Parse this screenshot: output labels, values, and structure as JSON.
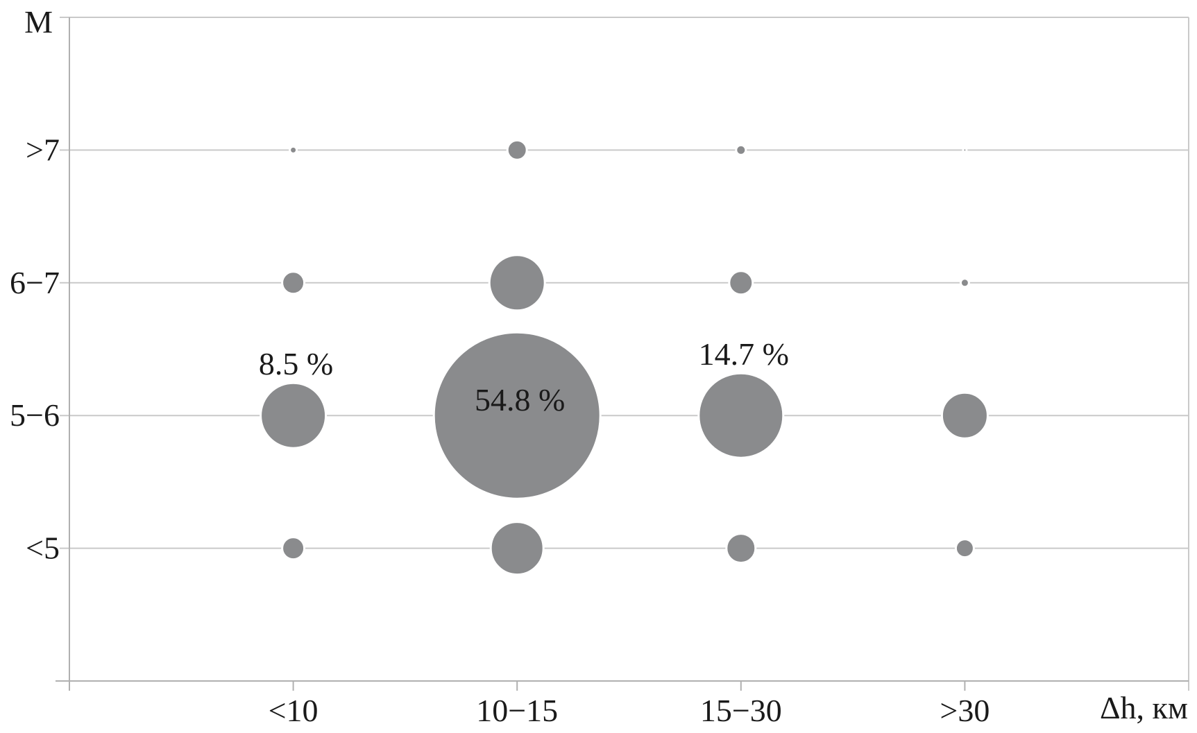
{
  "chart_data": {
    "type": "scatter",
    "subtype": "bubble",
    "title": "",
    "xlabel": "Δh, км",
    "ylabel": "M",
    "x_categories": [
      "<10",
      "10−15",
      "15−30",
      ">30"
    ],
    "y_categories_top_to_bottom": [
      ">7",
      "6−7",
      "5−6",
      "<5"
    ],
    "grid": "horizontal-only",
    "legend": "none",
    "size_encoding": "bubble area proportional to percent of events",
    "points": [
      {
        "x": "<10",
        "y": ">7",
        "radius_px": 5,
        "percent_est": 0.1
      },
      {
        "x": "10−15",
        "y": ">7",
        "radius_px": 14,
        "percent_est": 0.8
      },
      {
        "x": "15−30",
        "y": ">7",
        "radius_px": 7,
        "percent_est": 0.2
      },
      {
        "x": ">30",
        "y": ">7",
        "radius_px": 2.5,
        "percent_est": 0.02
      },
      {
        "x": "<10",
        "y": "6−7",
        "radius_px": 16,
        "percent_est": 1.0
      },
      {
        "x": "10−15",
        "y": "6−7",
        "radius_px": 40,
        "percent_est": 6.1
      },
      {
        "x": "15−30",
        "y": "6−7",
        "radius_px": 17,
        "percent_est": 1.1
      },
      {
        "x": ">30",
        "y": "6−7",
        "radius_px": 6,
        "percent_est": 0.15
      },
      {
        "x": "<10",
        "y": "5−6",
        "radius_px": 47,
        "percent_est": 8.5,
        "label": "8.5 %",
        "label_placement": "above"
      },
      {
        "x": "10−15",
        "y": "5−6",
        "radius_px": 120,
        "percent_est": 54.8,
        "label": "54.8 %",
        "label_placement": "inside"
      },
      {
        "x": "15−30",
        "y": "5−6",
        "radius_px": 61,
        "percent_est": 14.7,
        "label": "14.7 %",
        "label_placement": "above"
      },
      {
        "x": ">30",
        "y": "5−6",
        "radius_px": 33,
        "percent_est": 4.2
      },
      {
        "x": "<10",
        "y": "<5",
        "radius_px": 16,
        "percent_est": 1.0
      },
      {
        "x": "10−15",
        "y": "<5",
        "radius_px": 38,
        "percent_est": 5.6
      },
      {
        "x": "15−30",
        "y": "<5",
        "radius_px": 21,
        "percent_est": 1.7
      },
      {
        "x": ">30",
        "y": "<5",
        "radius_px": 13,
        "percent_est": 0.65
      }
    ],
    "annotations": [
      "8.5 %",
      "54.8 %",
      "14.7 %"
    ],
    "colors": {
      "bubble": "#8a8b8d",
      "bubble_halo": "#ffffff",
      "gridline": "#c9c9c9",
      "axis": "#b0b0b0",
      "text": "#1a1a1a"
    }
  }
}
